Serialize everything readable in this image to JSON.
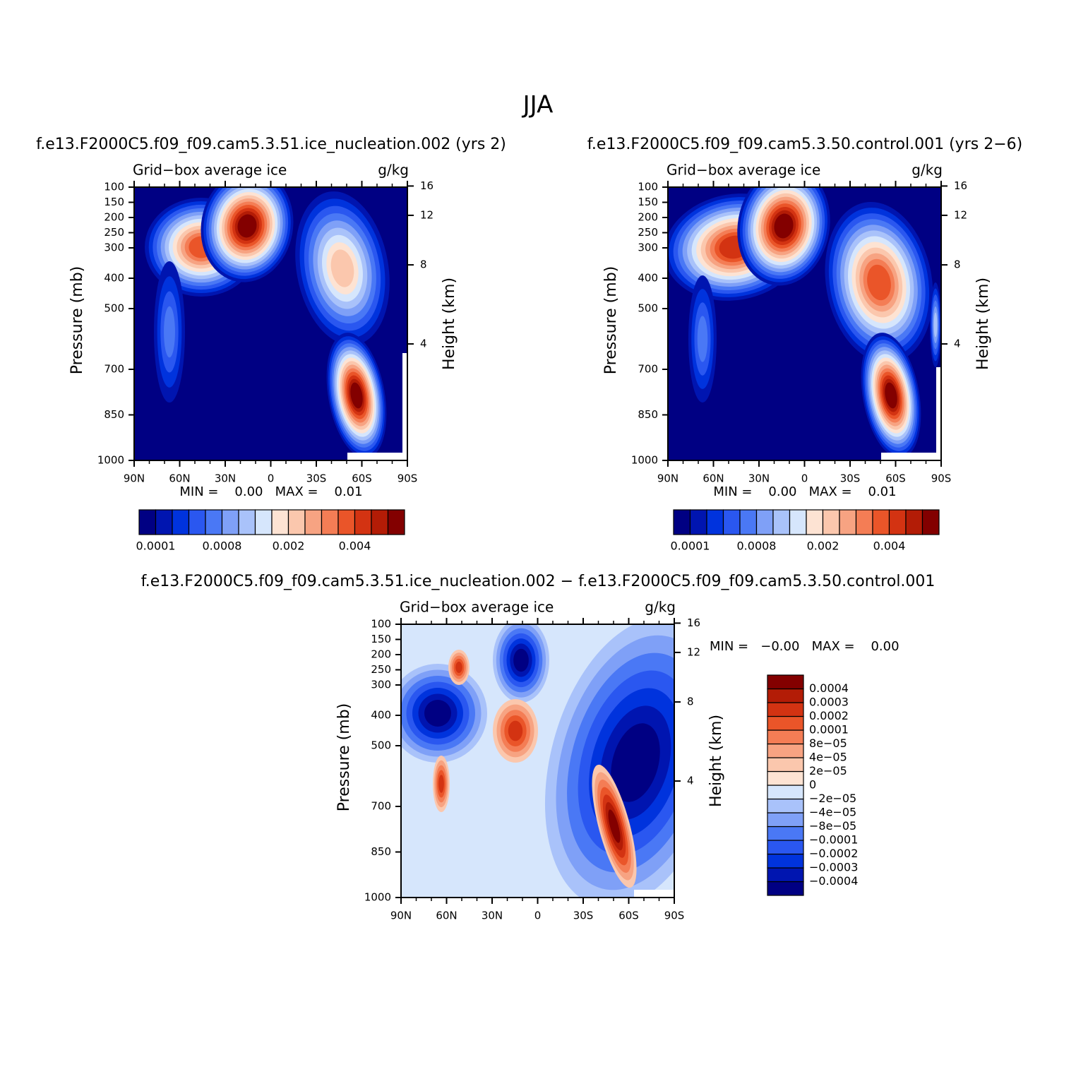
{
  "title": "JJA",
  "chart_data": [
    {
      "type": "contour",
      "title": "f.e13.F2000C5.f09_f09.cam5.3.51.ice_nucleation.002 (yrs 2)",
      "left_subtitle": "Grid−box average ice",
      "right_subtitle": "g/kg",
      "ylabel": "Pressure (mb)",
      "y2label": "Height (km)",
      "xlim": [
        90,
        -90
      ],
      "xticks": [
        {
          "value": 90,
          "label": "90N"
        },
        {
          "value": 60,
          "label": "60N"
        },
        {
          "value": 30,
          "label": "30N"
        },
        0,
        {
          "value": -30,
          "label": "30S"
        },
        {
          "value": -60,
          "label": "60S"
        },
        {
          "value": -90,
          "label": "90S"
        }
      ],
      "ylim": [
        1000,
        100
      ],
      "yticks": [
        100,
        150,
        200,
        250,
        300,
        400,
        500,
        700,
        850,
        1000
      ],
      "y2ticks": [
        16,
        12,
        8,
        4
      ],
      "stats": "MIN =    0.00   MAX =    0.01",
      "colorbar": {
        "orientation": "horizontal",
        "colors": [
          "#000083",
          "#0015b0",
          "#0033dd",
          "#2a57f0",
          "#4a78f5",
          "#7fa0f7",
          "#a9c2fa",
          "#d6e6fc",
          "#fde3d3",
          "#fbc7ad",
          "#f7a382",
          "#f47d55",
          "#ea5529",
          "#d33312",
          "#b31c06",
          "#830000"
        ],
        "levels": [
          0.0001,
          null,
          null,
          null,
          0.0008,
          null,
          null,
          null,
          0.002,
          null,
          null,
          null,
          0.004,
          null,
          null
        ]
      }
    },
    {
      "type": "contour",
      "title": "f.e13.F2000C5.f09_f09.cam5.3.50.control.001 (yrs 2−6)",
      "left_subtitle": "Grid−box average ice",
      "right_subtitle": "g/kg",
      "ylabel": "Pressure (mb)",
      "y2label": "Height (km)",
      "xlim": [
        90,
        -90
      ],
      "xticks": [
        {
          "value": 90,
          "label": "90N"
        },
        {
          "value": 60,
          "label": "60N"
        },
        {
          "value": 30,
          "label": "30N"
        },
        0,
        {
          "value": -30,
          "label": "30S"
        },
        {
          "value": -60,
          "label": "60S"
        },
        {
          "value": -90,
          "label": "90S"
        }
      ],
      "ylim": [
        1000,
        100
      ],
      "yticks": [
        100,
        150,
        200,
        250,
        300,
        400,
        500,
        700,
        850,
        1000
      ],
      "y2ticks": [
        16,
        12,
        8,
        4
      ],
      "stats": "MIN =    0.00   MAX =    0.01",
      "colorbar": {
        "orientation": "horizontal",
        "colors": [
          "#000083",
          "#0015b0",
          "#0033dd",
          "#2a57f0",
          "#4a78f5",
          "#7fa0f7",
          "#a9c2fa",
          "#d6e6fc",
          "#fde3d3",
          "#fbc7ad",
          "#f7a382",
          "#f47d55",
          "#ea5529",
          "#d33312",
          "#b31c06",
          "#830000"
        ],
        "levels": [
          0.0001,
          null,
          null,
          null,
          0.0008,
          null,
          null,
          null,
          0.002,
          null,
          null,
          null,
          0.004,
          null,
          null
        ]
      }
    },
    {
      "type": "contour",
      "title": "f.e13.F2000C5.f09_f09.cam5.3.51.ice_nucleation.002 − f.e13.F2000C5.f09_f09.cam5.3.50.control.001",
      "left_subtitle": "Grid−box average ice",
      "right_subtitle": "g/kg",
      "ylabel": "Pressure (mb)",
      "y2label": "Height (km)",
      "xlim": [
        90,
        -90
      ],
      "xticks": [
        {
          "value": 90,
          "label": "90N"
        },
        {
          "value": 60,
          "label": "60N"
        },
        {
          "value": 30,
          "label": "30N"
        },
        0,
        {
          "value": -30,
          "label": "30S"
        },
        {
          "value": -60,
          "label": "60S"
        },
        {
          "value": -90,
          "label": "90S"
        }
      ],
      "ylim": [
        1000,
        100
      ],
      "yticks": [
        100,
        150,
        200,
        250,
        300,
        400,
        500,
        700,
        850,
        1000
      ],
      "y2ticks": [
        16,
        12,
        8,
        4
      ],
      "stats": "MIN =   −0.00   MAX =    0.00",
      "colorbar": {
        "orientation": "vertical",
        "colors": [
          "#000083",
          "#0015b0",
          "#0033dd",
          "#2a57f0",
          "#4a78f5",
          "#7fa0f7",
          "#a9c2fa",
          "#d6e6fc",
          "#fde3d3",
          "#fbc7ad",
          "#f7a382",
          "#f47d55",
          "#ea5529",
          "#d33312",
          "#b31c06",
          "#830000"
        ],
        "levels": [
          {
            "value": -0.0004,
            "label": "−0.0004"
          },
          {
            "value": -0.0003,
            "label": "−0.0003"
          },
          {
            "value": -0.0002,
            "label": "−0.0002"
          },
          {
            "value": -0.0001,
            "label": "−0.0001"
          },
          {
            "value": -8e-05,
            "label": "−8e−05"
          },
          {
            "value": -4e-05,
            "label": "−4e−05"
          },
          {
            "value": -2e-05,
            "label": "−2e−05"
          },
          0,
          {
            "value": 2e-05,
            "label": "2e−05"
          },
          {
            "value": 4e-05,
            "label": "4e−05"
          },
          {
            "value": 8e-05,
            "label": "8e−05"
          },
          0.0001,
          0.0002,
          0.0003,
          0.0004
        ]
      }
    }
  ]
}
